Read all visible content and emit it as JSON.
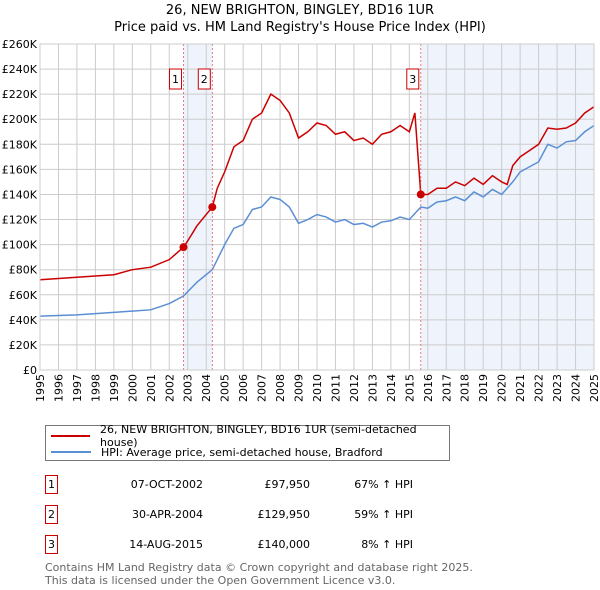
{
  "chart_data": {
    "type": "line",
    "title": "26, NEW BRIGHTON, BINGLEY, BD16 1UR",
    "subtitle": "Price paid vs. HM Land Registry's House Price Index (HPI)",
    "xlim": [
      1995,
      2025
    ],
    "ylim": [
      0,
      260000
    ],
    "x_ticks": [
      "1995",
      "1996",
      "1997",
      "1998",
      "1999",
      "2000",
      "2001",
      "2002",
      "2003",
      "2004",
      "2005",
      "2006",
      "2007",
      "2008",
      "2009",
      "2010",
      "2011",
      "2012",
      "2013",
      "2014",
      "2015",
      "2016",
      "2017",
      "2018",
      "2019",
      "2020",
      "2021",
      "2022",
      "2023",
      "2024",
      "2025"
    ],
    "y_ticks": [
      "£0",
      "£20K",
      "£40K",
      "£60K",
      "£80K",
      "£100K",
      "£120K",
      "£140K",
      "£160K",
      "£180K",
      "£200K",
      "£220K",
      "£240K",
      "£260K"
    ],
    "grid": true,
    "shaded_ranges": [
      [
        2002.77,
        2004.33
      ],
      [
        2015.62,
        2025
      ]
    ],
    "series": [
      {
        "name": "26, NEW BRIGHTON, BINGLEY, BD16 1UR (semi-detached house)",
        "color": "#cc0000",
        "x": [
          1995,
          1996,
          1997,
          1998,
          1999,
          2000,
          2001,
          2002,
          2002.77,
          2003,
          2003.5,
          2004.33,
          2004.6,
          2005,
          2005.5,
          2006,
          2006.5,
          2007,
          2007.5,
          2008,
          2008.5,
          2009,
          2009.5,
          2010,
          2010.5,
          2011,
          2011.5,
          2012,
          2012.5,
          2013,
          2013.5,
          2014,
          2014.5,
          2015,
          2015.3,
          2015.62,
          2016,
          2016.5,
          2017,
          2017.5,
          2018,
          2018.5,
          2019,
          2019.5,
          2020,
          2020.3,
          2020.6,
          2021,
          2021.5,
          2022,
          2022.5,
          2023,
          2023.5,
          2024,
          2024.5,
          2025
        ],
        "y": [
          72000,
          73000,
          74000,
          75000,
          76000,
          80000,
          82000,
          88000,
          97950,
          103000,
          115000,
          129950,
          145000,
          158000,
          178000,
          183000,
          200000,
          205000,
          220000,
          215000,
          205000,
          185000,
          190000,
          197000,
          195000,
          188000,
          190000,
          183000,
          185000,
          180000,
          188000,
          190000,
          195000,
          190000,
          205000,
          140000,
          140000,
          145000,
          145000,
          150000,
          147000,
          153000,
          148000,
          155000,
          150000,
          148000,
          163000,
          170000,
          175000,
          180000,
          193000,
          192000,
          193000,
          197000,
          205000,
          210000
        ]
      },
      {
        "name": "HPI: Average price, semi-detached house, Bradford",
        "color": "#5b8fd4",
        "x": [
          1995,
          1997,
          1998,
          1999,
          2000,
          2001,
          2002,
          2002.77,
          2003.5,
          2004.33,
          2005,
          2005.5,
          2006,
          2006.5,
          2007,
          2007.5,
          2008,
          2008.5,
          2009,
          2009.5,
          2010,
          2010.5,
          2011,
          2011.5,
          2012,
          2012.5,
          2013,
          2013.5,
          2014,
          2014.5,
          2015,
          2015.62,
          2016,
          2016.5,
          2017,
          2017.5,
          2018,
          2018.5,
          2019,
          2019.5,
          2020,
          2020.6,
          2021,
          2021.5,
          2022,
          2022.5,
          2023,
          2023.5,
          2024,
          2024.5,
          2025
        ],
        "y": [
          43000,
          44000,
          45000,
          46000,
          47000,
          48000,
          53000,
          59000,
          70000,
          80000,
          100000,
          113000,
          116000,
          128000,
          130000,
          138000,
          136000,
          130000,
          117000,
          120000,
          124000,
          122000,
          118000,
          120000,
          116000,
          117000,
          114000,
          118000,
          119000,
          122000,
          120000,
          130000,
          129000,
          134000,
          135000,
          138000,
          135000,
          142000,
          138000,
          144000,
          140000,
          150000,
          158000,
          162000,
          166000,
          180000,
          177000,
          182000,
          183000,
          190000,
          195000
        ]
      }
    ],
    "sales": [
      {
        "label": "1",
        "x": 2002.77,
        "y": 97950,
        "date": "07-OCT-2002",
        "price": "£97,950",
        "hpi": "67% ↑ HPI"
      },
      {
        "label": "2",
        "x": 2004.33,
        "y": 129950,
        "date": "30-APR-2004",
        "price": "£129,950",
        "hpi": "59% ↑ HPI"
      },
      {
        "label": "3",
        "x": 2015.62,
        "y": 140000,
        "date": "14-AUG-2015",
        "price": "£140,000",
        "hpi": "8% ↑ HPI"
      }
    ]
  },
  "footer": {
    "line1": "Contains HM Land Registry data © Crown copyright and database right 2025.",
    "line2": "This data is licensed under the Open Government Licence v3.0."
  }
}
